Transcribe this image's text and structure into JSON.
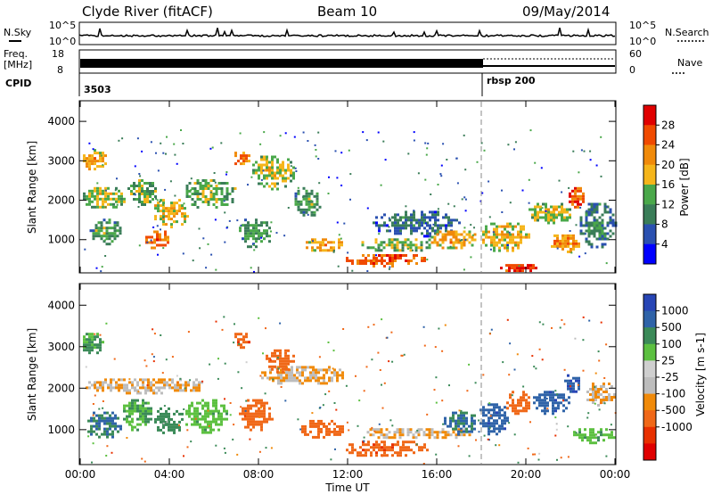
{
  "header": {
    "station": "Clyde River (fitACF)",
    "beam": "Beam 10",
    "date": "09/May/2014"
  },
  "summary_panels": {
    "nsky_label": "N.Sky",
    "nsearch_label": "N.Search",
    "count_ticks": [
      "10^5",
      "10^0"
    ],
    "freq_label": [
      "Freq.",
      "[MHz]"
    ],
    "freq_ticks": [
      "18",
      "8"
    ],
    "nave_label": "Nave",
    "nave_ticks": [
      "60",
      "0"
    ],
    "cpid_label": "CPID",
    "cpid_segments": [
      {
        "label": "3503",
        "start_hour": 0
      },
      {
        "label": "rbsp  200",
        "start_hour": 18
      }
    ]
  },
  "colors": {
    "power": [
      "#0000ff",
      "#2a50b0",
      "#3a7d58",
      "#4aa84a",
      "#f5b51a",
      "#f08a0a",
      "#f04a00",
      "#e00000"
    ],
    "velocity": [
      "#2745b5",
      "#2f63a8",
      "#3b8a58",
      "#5cc040",
      "#cfcfcf",
      "#bdbdbd",
      "#f08a0a",
      "#f06818",
      "#e83000",
      "#e00000"
    ]
  },
  "chart_data": [
    {
      "type": "heatmap",
      "title": "",
      "xlabel": "Time UT",
      "ylabel": "Slant Range [km]",
      "xlim": [
        0,
        24
      ],
      "ylim": [
        180,
        4500
      ],
      "x_ticks": [
        "00:00",
        "04:00",
        "08:00",
        "12:00",
        "16:00",
        "20:00",
        "00:00"
      ],
      "y_ticks": [
        "1000",
        "2000",
        "3000",
        "4000"
      ],
      "colorbar": {
        "label": "Power [dB]",
        "range": [
          0,
          32
        ],
        "ticks": [
          "4",
          "8",
          "12",
          "16",
          "20",
          "24",
          "28"
        ]
      },
      "cpid_change_hour": 18,
      "blobs": [
        {
          "t0": 0.0,
          "t1": 1.2,
          "r0": 2800,
          "r1": 3300,
          "v": 18
        },
        {
          "t0": 0.0,
          "t1": 2.0,
          "r0": 1800,
          "r1": 2400,
          "v": 14
        },
        {
          "t0": 0.3,
          "t1": 1.8,
          "r0": 900,
          "r1": 1600,
          "v": 10
        },
        {
          "t0": 2.0,
          "t1": 3.4,
          "r0": 1900,
          "r1": 2600,
          "v": 12
        },
        {
          "t0": 2.8,
          "t1": 4.0,
          "r0": 800,
          "r1": 1300,
          "v": 22
        },
        {
          "t0": 3.2,
          "t1": 4.8,
          "r0": 1300,
          "r1": 2100,
          "v": 16
        },
        {
          "t0": 4.5,
          "t1": 7.0,
          "r0": 1800,
          "r1": 2600,
          "v": 12
        },
        {
          "t0": 6.8,
          "t1": 7.6,
          "r0": 2900,
          "r1": 3300,
          "v": 22
        },
        {
          "t0": 7.0,
          "t1": 8.6,
          "r0": 800,
          "r1": 1600,
          "v": 10
        },
        {
          "t0": 7.6,
          "t1": 9.6,
          "r0": 2300,
          "r1": 3200,
          "v": 14
        },
        {
          "t0": 9.5,
          "t1": 10.8,
          "r0": 1600,
          "r1": 2400,
          "v": 10
        },
        {
          "t0": 10.0,
          "t1": 11.8,
          "r0": 700,
          "r1": 1100,
          "v": 18
        },
        {
          "t0": 11.8,
          "t1": 15.5,
          "r0": 350,
          "r1": 700,
          "v": 24
        },
        {
          "t0": 12.5,
          "t1": 15.8,
          "r0": 700,
          "r1": 1100,
          "v": 12
        },
        {
          "t0": 13.0,
          "t1": 17.0,
          "r0": 1100,
          "r1": 1800,
          "v": 6
        },
        {
          "t0": 15.5,
          "t1": 17.8,
          "r0": 800,
          "r1": 1300,
          "v": 18
        },
        {
          "t0": 17.8,
          "t1": 20.2,
          "r0": 700,
          "r1": 1500,
          "v": 16
        },
        {
          "t0": 18.6,
          "t1": 20.8,
          "r0": 200,
          "r1": 450,
          "v": 26
        },
        {
          "t0": 20.0,
          "t1": 22.0,
          "r0": 1400,
          "r1": 2000,
          "v": 14
        },
        {
          "t0": 21.8,
          "t1": 22.6,
          "r0": 1800,
          "r1": 2400,
          "v": 24
        },
        {
          "t0": 21.0,
          "t1": 22.4,
          "r0": 700,
          "r1": 1200,
          "v": 20
        },
        {
          "t0": 22.3,
          "t1": 24.0,
          "r0": 800,
          "r1": 2000,
          "v": 8
        }
      ]
    },
    {
      "type": "heatmap",
      "title": "",
      "xlabel": "Time UT",
      "ylabel": "Slant Range [km]",
      "xlim": [
        0,
        24
      ],
      "ylim": [
        180,
        4500
      ],
      "x_ticks": [
        "00:00",
        "04:00",
        "08:00",
        "12:00",
        "16:00",
        "20:00",
        "00:00"
      ],
      "y_ticks": [
        "1000",
        "2000",
        "3000",
        "4000"
      ],
      "colorbar": {
        "label": "Velocity [m s-1]",
        "ticks": [
          "1000",
          "500",
          "100",
          "25",
          "-25",
          "-100",
          "-500",
          "-1000"
        ]
      },
      "cpid_change_hour": 18,
      "blobs": [
        {
          "t0": 0.0,
          "t1": 1.0,
          "r0": 2800,
          "r1": 3400,
          "v": 100
        },
        {
          "t0": 0.0,
          "t1": 6.0,
          "r0": 1900,
          "r1": 2300,
          "v": -25
        },
        {
          "t0": 0.2,
          "t1": 1.8,
          "r0": 800,
          "r1": 1500,
          "v": 500
        },
        {
          "t0": 1.8,
          "t1": 3.2,
          "r0": 1000,
          "r1": 1800,
          "v": 100
        },
        {
          "t0": 3.2,
          "t1": 4.6,
          "r0": 900,
          "r1": 1600,
          "v": 200
        },
        {
          "t0": 4.6,
          "t1": 6.6,
          "r0": 900,
          "r1": 1800,
          "v": 80
        },
        {
          "t0": 6.8,
          "t1": 7.6,
          "r0": 3000,
          "r1": 3400,
          "v": -400
        },
        {
          "t0": 7.0,
          "t1": 8.6,
          "r0": 1000,
          "r1": 1800,
          "v": -300
        },
        {
          "t0": 8.0,
          "t1": 12.0,
          "r0": 2100,
          "r1": 2600,
          "v": -25
        },
        {
          "t0": 8.2,
          "t1": 9.6,
          "r0": 2400,
          "r1": 3000,
          "v": -200
        },
        {
          "t0": 9.8,
          "t1": 11.8,
          "r0": 800,
          "r1": 1300,
          "v": -300
        },
        {
          "t0": 11.8,
          "t1": 15.6,
          "r0": 350,
          "r1": 800,
          "v": -400
        },
        {
          "t0": 12.5,
          "t1": 17.8,
          "r0": 800,
          "r1": 1100,
          "v": -25
        },
        {
          "t0": 16.2,
          "t1": 17.8,
          "r0": 900,
          "r1": 1500,
          "v": 500
        },
        {
          "t0": 17.8,
          "t1": 19.2,
          "r0": 900,
          "r1": 1700,
          "v": 800
        },
        {
          "t0": 19.0,
          "t1": 20.2,
          "r0": 1400,
          "r1": 2000,
          "v": -300
        },
        {
          "t0": 20.2,
          "t1": 22.0,
          "r0": 1400,
          "r1": 2000,
          "v": 800
        },
        {
          "t0": 21.6,
          "t1": 22.4,
          "r0": 1900,
          "r1": 2400,
          "v": 900
        },
        {
          "t0": 22.6,
          "t1": 24.0,
          "r0": 1600,
          "r1": 2200,
          "v": -25
        },
        {
          "t0": 22.0,
          "t1": 24.0,
          "r0": 700,
          "r1": 1100,
          "v": 80
        }
      ]
    }
  ]
}
